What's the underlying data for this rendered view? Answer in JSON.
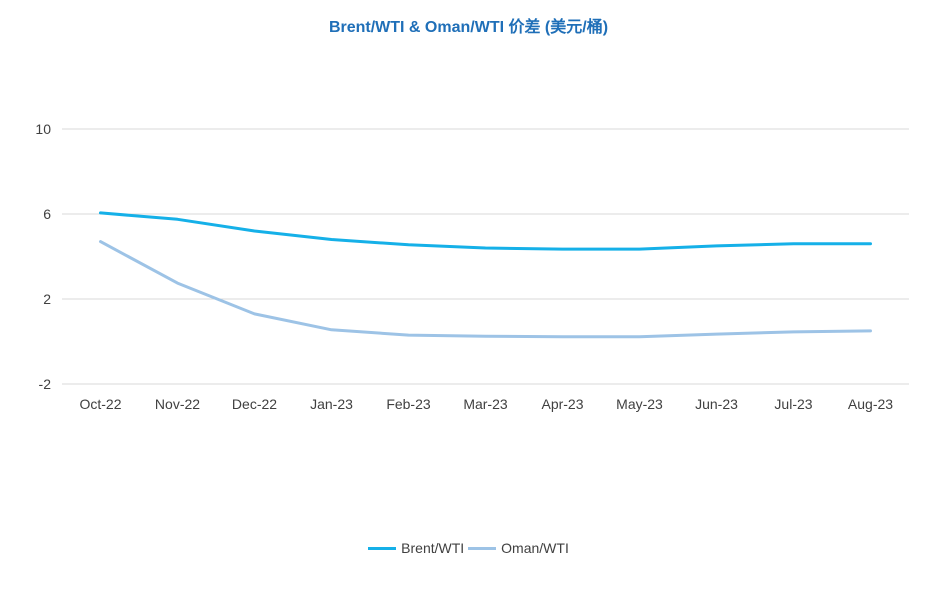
{
  "chart_data": {
    "type": "line",
    "title": "Brent/WTI & Oman/WTI 价差 (美元/桶)",
    "xlabel": "",
    "ylabel": "",
    "categories": [
      "Oct-22",
      "Nov-22",
      "Dec-22",
      "Jan-23",
      "Feb-23",
      "Mar-23",
      "Apr-23",
      "May-23",
      "Jun-23",
      "Jul-23",
      "Aug-23"
    ],
    "ylim": [
      -2,
      10
    ],
    "yticks": [
      -2,
      2,
      6,
      10
    ],
    "grid": true,
    "legend_position": "bottom",
    "series": [
      {
        "name": "Brent/WTI",
        "color": "#15b0e8",
        "values": [
          6.05,
          5.75,
          5.2,
          4.8,
          4.55,
          4.4,
          4.35,
          4.35,
          4.5,
          4.6,
          4.6
        ]
      },
      {
        "name": "Oman/WTI",
        "color": "#9dc3e6",
        "values": [
          4.7,
          2.75,
          1.3,
          0.55,
          0.3,
          0.25,
          0.22,
          0.22,
          0.35,
          0.45,
          0.5
        ]
      }
    ]
  }
}
